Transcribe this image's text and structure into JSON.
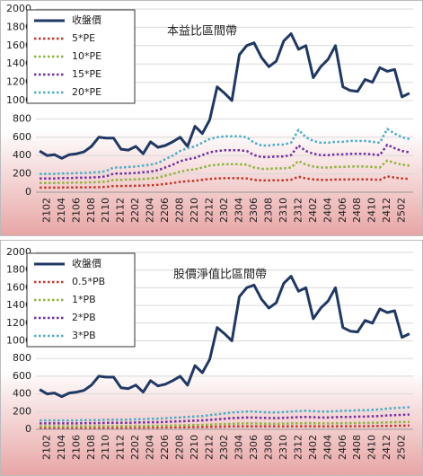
{
  "chart_data": [
    {
      "type": "line",
      "title": "本益比區間帶",
      "categories": [
        null,
        "2102",
        null,
        "2104",
        null,
        "2106",
        null,
        "2108",
        null,
        "2110",
        null,
        "2112",
        null,
        "2202",
        null,
        "2204",
        null,
        "2206",
        null,
        "2208",
        null,
        "2210",
        null,
        "2212",
        null,
        "2302",
        null,
        "2304",
        null,
        "2306",
        null,
        "2308",
        null,
        "2310",
        null,
        "2312",
        null,
        "2402",
        null,
        "2404",
        null,
        "2406",
        null,
        "2408",
        null,
        "2410",
        null,
        "2412",
        null,
        "2502",
        null
      ],
      "ylim": [
        0,
        2000
      ],
      "yticks": [
        0,
        200,
        400,
        600,
        800,
        1000,
        1200,
        1400,
        1600,
        1800,
        2000
      ],
      "grid": true,
      "legend": "top-left",
      "series": [
        {
          "name": "收盤價",
          "color": "#1f3864",
          "values": [
            450,
            400,
            410,
            370,
            410,
            420,
            440,
            500,
            600,
            590,
            590,
            470,
            460,
            500,
            420,
            550,
            490,
            510,
            550,
            600,
            500,
            720,
            640,
            790,
            1150,
            1080,
            1000,
            1500,
            1600,
            1630,
            1470,
            1370,
            1430,
            1650,
            1730,
            1560,
            1600,
            1250,
            1370,
            1450,
            1600,
            1150,
            1110,
            1100,
            1230,
            1200,
            1360,
            1320,
            1340,
            1040,
            1080
          ]
        },
        {
          "name": "5*PE",
          "color": "#c0392b",
          "values": [
            50,
            50,
            50,
            51,
            51,
            53,
            53,
            54,
            55,
            58,
            68,
            68,
            69,
            70,
            73,
            75,
            80,
            90,
            100,
            113,
            120,
            125,
            135,
            145,
            150,
            153,
            153,
            153,
            150,
            135,
            128,
            128,
            130,
            130,
            135,
            170,
            150,
            140,
            135,
            135,
            138,
            138,
            140,
            140,
            140,
            138,
            135,
            173,
            160,
            150,
            145
          ]
        },
        {
          "name": "10*PE",
          "color": "#8db43e",
          "values": [
            100,
            100,
            100,
            103,
            103,
            105,
            105,
            108,
            110,
            115,
            135,
            135,
            138,
            140,
            145,
            150,
            160,
            180,
            200,
            225,
            240,
            250,
            270,
            290,
            300,
            305,
            305,
            305,
            300,
            270,
            255,
            255,
            260,
            260,
            270,
            340,
            300,
            280,
            270,
            270,
            275,
            275,
            280,
            280,
            280,
            275,
            270,
            345,
            320,
            300,
            290
          ]
        },
        {
          "name": "15*PE",
          "color": "#7030a0",
          "values": [
            150,
            150,
            150,
            154,
            154,
            158,
            158,
            161,
            165,
            173,
            203,
            203,
            206,
            210,
            218,
            225,
            240,
            270,
            300,
            338,
            360,
            375,
            405,
            435,
            450,
            458,
            458,
            458,
            450,
            405,
            383,
            383,
            390,
            390,
            405,
            510,
            450,
            420,
            405,
            405,
            413,
            413,
            420,
            420,
            420,
            413,
            405,
            518,
            480,
            450,
            435
          ]
        },
        {
          "name": "20*PE",
          "color": "#4bacc6",
          "values": [
            200,
            200,
            200,
            205,
            205,
            210,
            210,
            215,
            220,
            230,
            270,
            270,
            275,
            280,
            290,
            300,
            320,
            360,
            400,
            450,
            480,
            500,
            540,
            580,
            600,
            610,
            610,
            610,
            600,
            540,
            510,
            510,
            520,
            520,
            540,
            680,
            600,
            560,
            540,
            540,
            550,
            550,
            560,
            560,
            560,
            550,
            540,
            690,
            640,
            600,
            580
          ]
        }
      ]
    },
    {
      "type": "line",
      "title": "股價淨值比區間帶",
      "categories": [
        null,
        "2102",
        null,
        "2104",
        null,
        "2106",
        null,
        "2108",
        null,
        "2110",
        null,
        "2112",
        null,
        "2202",
        null,
        "2204",
        null,
        "2206",
        null,
        "2208",
        null,
        "2210",
        null,
        "2212",
        null,
        "2302",
        null,
        "2304",
        null,
        "2306",
        null,
        "2308",
        null,
        "2310",
        null,
        "2312",
        null,
        "2402",
        null,
        "2404",
        null,
        "2406",
        null,
        "2408",
        null,
        "2410",
        null,
        "2412",
        null,
        "2502",
        null
      ],
      "ylim": [
        0,
        2000
      ],
      "yticks": [
        0,
        200,
        400,
        600,
        800,
        1000,
        1200,
        1400,
        1600,
        1800,
        2000
      ],
      "grid": true,
      "legend": "top-left",
      "series": [
        {
          "name": "收盤價",
          "color": "#1f3864",
          "values": [
            450,
            400,
            410,
            370,
            410,
            420,
            440,
            500,
            600,
            590,
            590,
            470,
            460,
            500,
            420,
            550,
            490,
            510,
            550,
            600,
            500,
            720,
            640,
            790,
            1150,
            1080,
            1000,
            1500,
            1600,
            1630,
            1470,
            1370,
            1430,
            1650,
            1730,
            1560,
            1600,
            1250,
            1370,
            1450,
            1600,
            1150,
            1110,
            1100,
            1230,
            1200,
            1360,
            1320,
            1340,
            1040,
            1080
          ]
        },
        {
          "name": "0.5*PB",
          "color": "#c0392b",
          "values": [
            17,
            17,
            17,
            17,
            17,
            17,
            18,
            18,
            18,
            18,
            18,
            18,
            18,
            19,
            19,
            20,
            20,
            21,
            22,
            23,
            23,
            24,
            25,
            27,
            28,
            30,
            32,
            33,
            33,
            33,
            33,
            32,
            32,
            33,
            33,
            34,
            35,
            34,
            33,
            33,
            34,
            35,
            35,
            36,
            36,
            37,
            38,
            39,
            40,
            41,
            42
          ]
        },
        {
          "name": "1*PB",
          "color": "#8db43e",
          "values": [
            33,
            33,
            33,
            33,
            33,
            33,
            35,
            35,
            35,
            37,
            37,
            37,
            37,
            38,
            38,
            40,
            40,
            42,
            43,
            45,
            47,
            48,
            50,
            53,
            57,
            60,
            63,
            65,
            67,
            67,
            65,
            63,
            63,
            65,
            67,
            68,
            70,
            68,
            67,
            67,
            68,
            70,
            70,
            72,
            72,
            73,
            75,
            78,
            80,
            82,
            83
          ]
        },
        {
          "name": "2*PB",
          "color": "#7030a0",
          "values": [
            67,
            67,
            67,
            67,
            67,
            67,
            70,
            70,
            70,
            73,
            73,
            73,
            73,
            77,
            77,
            80,
            80,
            83,
            87,
            90,
            93,
            97,
            100,
            107,
            113,
            120,
            127,
            130,
            133,
            133,
            130,
            127,
            127,
            130,
            133,
            137,
            140,
            137,
            133,
            133,
            137,
            140,
            140,
            143,
            143,
            147,
            150,
            157,
            160,
            163,
            167
          ]
        },
        {
          "name": "3*PB",
          "color": "#4bacc6",
          "values": [
            100,
            100,
            100,
            100,
            100,
            100,
            105,
            105,
            105,
            110,
            110,
            110,
            110,
            115,
            115,
            120,
            120,
            125,
            130,
            135,
            140,
            145,
            150,
            160,
            170,
            180,
            190,
            195,
            200,
            200,
            195,
            190,
            190,
            195,
            200,
            205,
            210,
            205,
            200,
            200,
            205,
            210,
            210,
            215,
            215,
            220,
            225,
            235,
            240,
            245,
            250
          ]
        }
      ]
    }
  ]
}
